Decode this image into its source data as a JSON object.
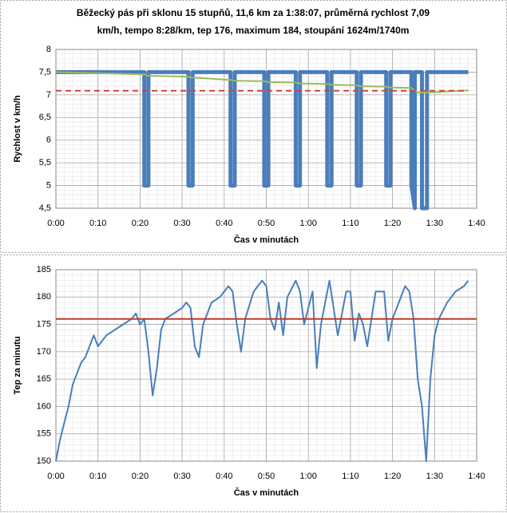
{
  "chart_data": [
    {
      "type": "line",
      "title": [
        "Běžecký pás při sklonu 15 stupňů,  11,6 km za 1:38:07, průměrná rychlost 7,09",
        "km/h, tempo 8:28/km, tep 176, maximum 184, stoupání 1624m/1740m"
      ],
      "xlabel": "Čas v minutách",
      "ylabel": "Rychlost v km/h",
      "xlim": [
        0,
        100
      ],
      "xticks": [
        {
          "value": 0,
          "label": "0:00"
        },
        {
          "value": 10,
          "label": "0:10"
        },
        {
          "value": 20,
          "label": "0:20"
        },
        {
          "value": 30,
          "label": "0:30"
        },
        {
          "value": 40,
          "label": "0:40"
        },
        {
          "value": 50,
          "label": "0:50"
        },
        {
          "value": 60,
          "label": "1:00"
        },
        {
          "value": 70,
          "label": "1:10"
        },
        {
          "value": 80,
          "label": "1:20"
        },
        {
          "value": 90,
          "label": "1:30"
        },
        {
          "value": 100,
          "label": "1:40"
        }
      ],
      "ylim": [
        4.5,
        8
      ],
      "yticks": [
        {
          "value": 4.5,
          "label": "4,5"
        },
        5,
        {
          "value": 5.5,
          "label": "5,5"
        },
        6,
        {
          "value": 6.5,
          "label": "6,5"
        },
        7,
        {
          "value": 7.5,
          "label": "7,5"
        },
        8
      ],
      "grid": true,
      "series": [
        {
          "color": "#4a7ebb",
          "width": 5,
          "x": [
            0,
            21,
            21,
            22,
            22,
            31.5,
            31.5,
            32.5,
            32.5,
            41.5,
            41.5,
            42.5,
            42.5,
            49.5,
            49.5,
            50.5,
            50.5,
            57,
            57,
            58,
            58,
            64.5,
            64.5,
            65.5,
            65.5,
            71.5,
            71.5,
            72.5,
            72.5,
            78.5,
            78.5,
            79.5,
            79.5,
            84.5,
            84.5,
            85.3,
            85.3,
            87,
            87,
            88.2,
            88.2,
            98
          ],
          "values": [
            7.5,
            7.5,
            5,
            5,
            7.5,
            7.5,
            5,
            5,
            7.5,
            7.5,
            5,
            5,
            7.5,
            7.5,
            5,
            5,
            7.5,
            7.5,
            5,
            5,
            7.5,
            7.5,
            5,
            5,
            7.5,
            7.5,
            5,
            5,
            7.5,
            7.5,
            5,
            5,
            7.5,
            7.5,
            5,
            4.5,
            7.5,
            7.5,
            4.5,
            4.5,
            7.5,
            7.5
          ]
        },
        {
          "color": "#9bbb59",
          "width": 2,
          "x": [
            0,
            21,
            22,
            31.5,
            32.5,
            41.5,
            42.5,
            49.5,
            50.5,
            57,
            58,
            64.5,
            65.5,
            71.5,
            72.5,
            78.5,
            79.5,
            84.5,
            86,
            88,
            98
          ],
          "values": [
            7.5,
            7.45,
            7.42,
            7.4,
            7.38,
            7.33,
            7.31,
            7.3,
            7.28,
            7.27,
            7.25,
            7.24,
            7.22,
            7.21,
            7.19,
            7.18,
            7.16,
            7.15,
            7.05,
            7.05,
            7.1
          ]
        },
        {
          "color": "#d9413b",
          "width": 2,
          "style": "dashed",
          "x": [
            0,
            98
          ],
          "values": [
            7.09,
            7.09
          ]
        }
      ]
    },
    {
      "type": "line",
      "xlabel": "Čas v minutách",
      "ylabel": "Tep za minutu",
      "xlim": [
        0,
        100
      ],
      "xticks": [
        {
          "value": 0,
          "label": "0:00"
        },
        {
          "value": 10,
          "label": "0:10"
        },
        {
          "value": 20,
          "label": "0:20"
        },
        {
          "value": 30,
          "label": "0:30"
        },
        {
          "value": 40,
          "label": "0:40"
        },
        {
          "value": 50,
          "label": "0:50"
        },
        {
          "value": 60,
          "label": "1:00"
        },
        {
          "value": 70,
          "label": "1:10"
        },
        {
          "value": 80,
          "label": "1:20"
        },
        {
          "value": 90,
          "label": "1:30"
        },
        {
          "value": 100,
          "label": "1:40"
        }
      ],
      "ylim": [
        150,
        185
      ],
      "yticks": [
        150,
        155,
        160,
        165,
        170,
        175,
        180,
        185
      ],
      "grid": true,
      "series": [
        {
          "color": "#4a7ebb",
          "width": 2,
          "x": [
            0,
            1,
            2,
            3,
            4,
            5,
            6,
            7,
            8,
            9,
            10,
            11,
            12,
            14,
            16,
            18,
            19,
            20,
            21,
            22,
            23,
            24,
            25,
            26,
            28,
            30,
            31,
            32,
            33,
            34,
            35,
            37,
            39,
            41,
            42,
            43,
            44,
            45,
            47,
            49,
            50,
            51,
            52,
            53,
            54,
            55,
            57,
            58,
            59,
            61,
            62,
            63,
            65,
            66,
            67,
            69,
            70,
            71,
            72,
            73,
            74,
            76,
            78,
            79,
            80,
            81,
            83,
            84,
            85,
            86,
            87,
            88,
            89,
            90,
            91,
            93,
            95,
            97,
            98
          ],
          "values": [
            150,
            154,
            157,
            160,
            164,
            166,
            168,
            169,
            171,
            173,
            171,
            172,
            173,
            174,
            175,
            176,
            177,
            175,
            176,
            170,
            162,
            167,
            174,
            176,
            177,
            178,
            179,
            178,
            171,
            169,
            175,
            179,
            180,
            182,
            181,
            175,
            170,
            176,
            181,
            183,
            182,
            176,
            174,
            179,
            173,
            180,
            183,
            181,
            175,
            181,
            167,
            175,
            183,
            178,
            173,
            181,
            181,
            172,
            177,
            175,
            171,
            181,
            181,
            172,
            176,
            178,
            182,
            181,
            176,
            165,
            160,
            150,
            165,
            173,
            176,
            179,
            181,
            182,
            183
          ]
        },
        {
          "color": "#c0392b",
          "width": 2,
          "x": [
            0,
            100
          ],
          "values": [
            176,
            176
          ]
        }
      ]
    }
  ]
}
